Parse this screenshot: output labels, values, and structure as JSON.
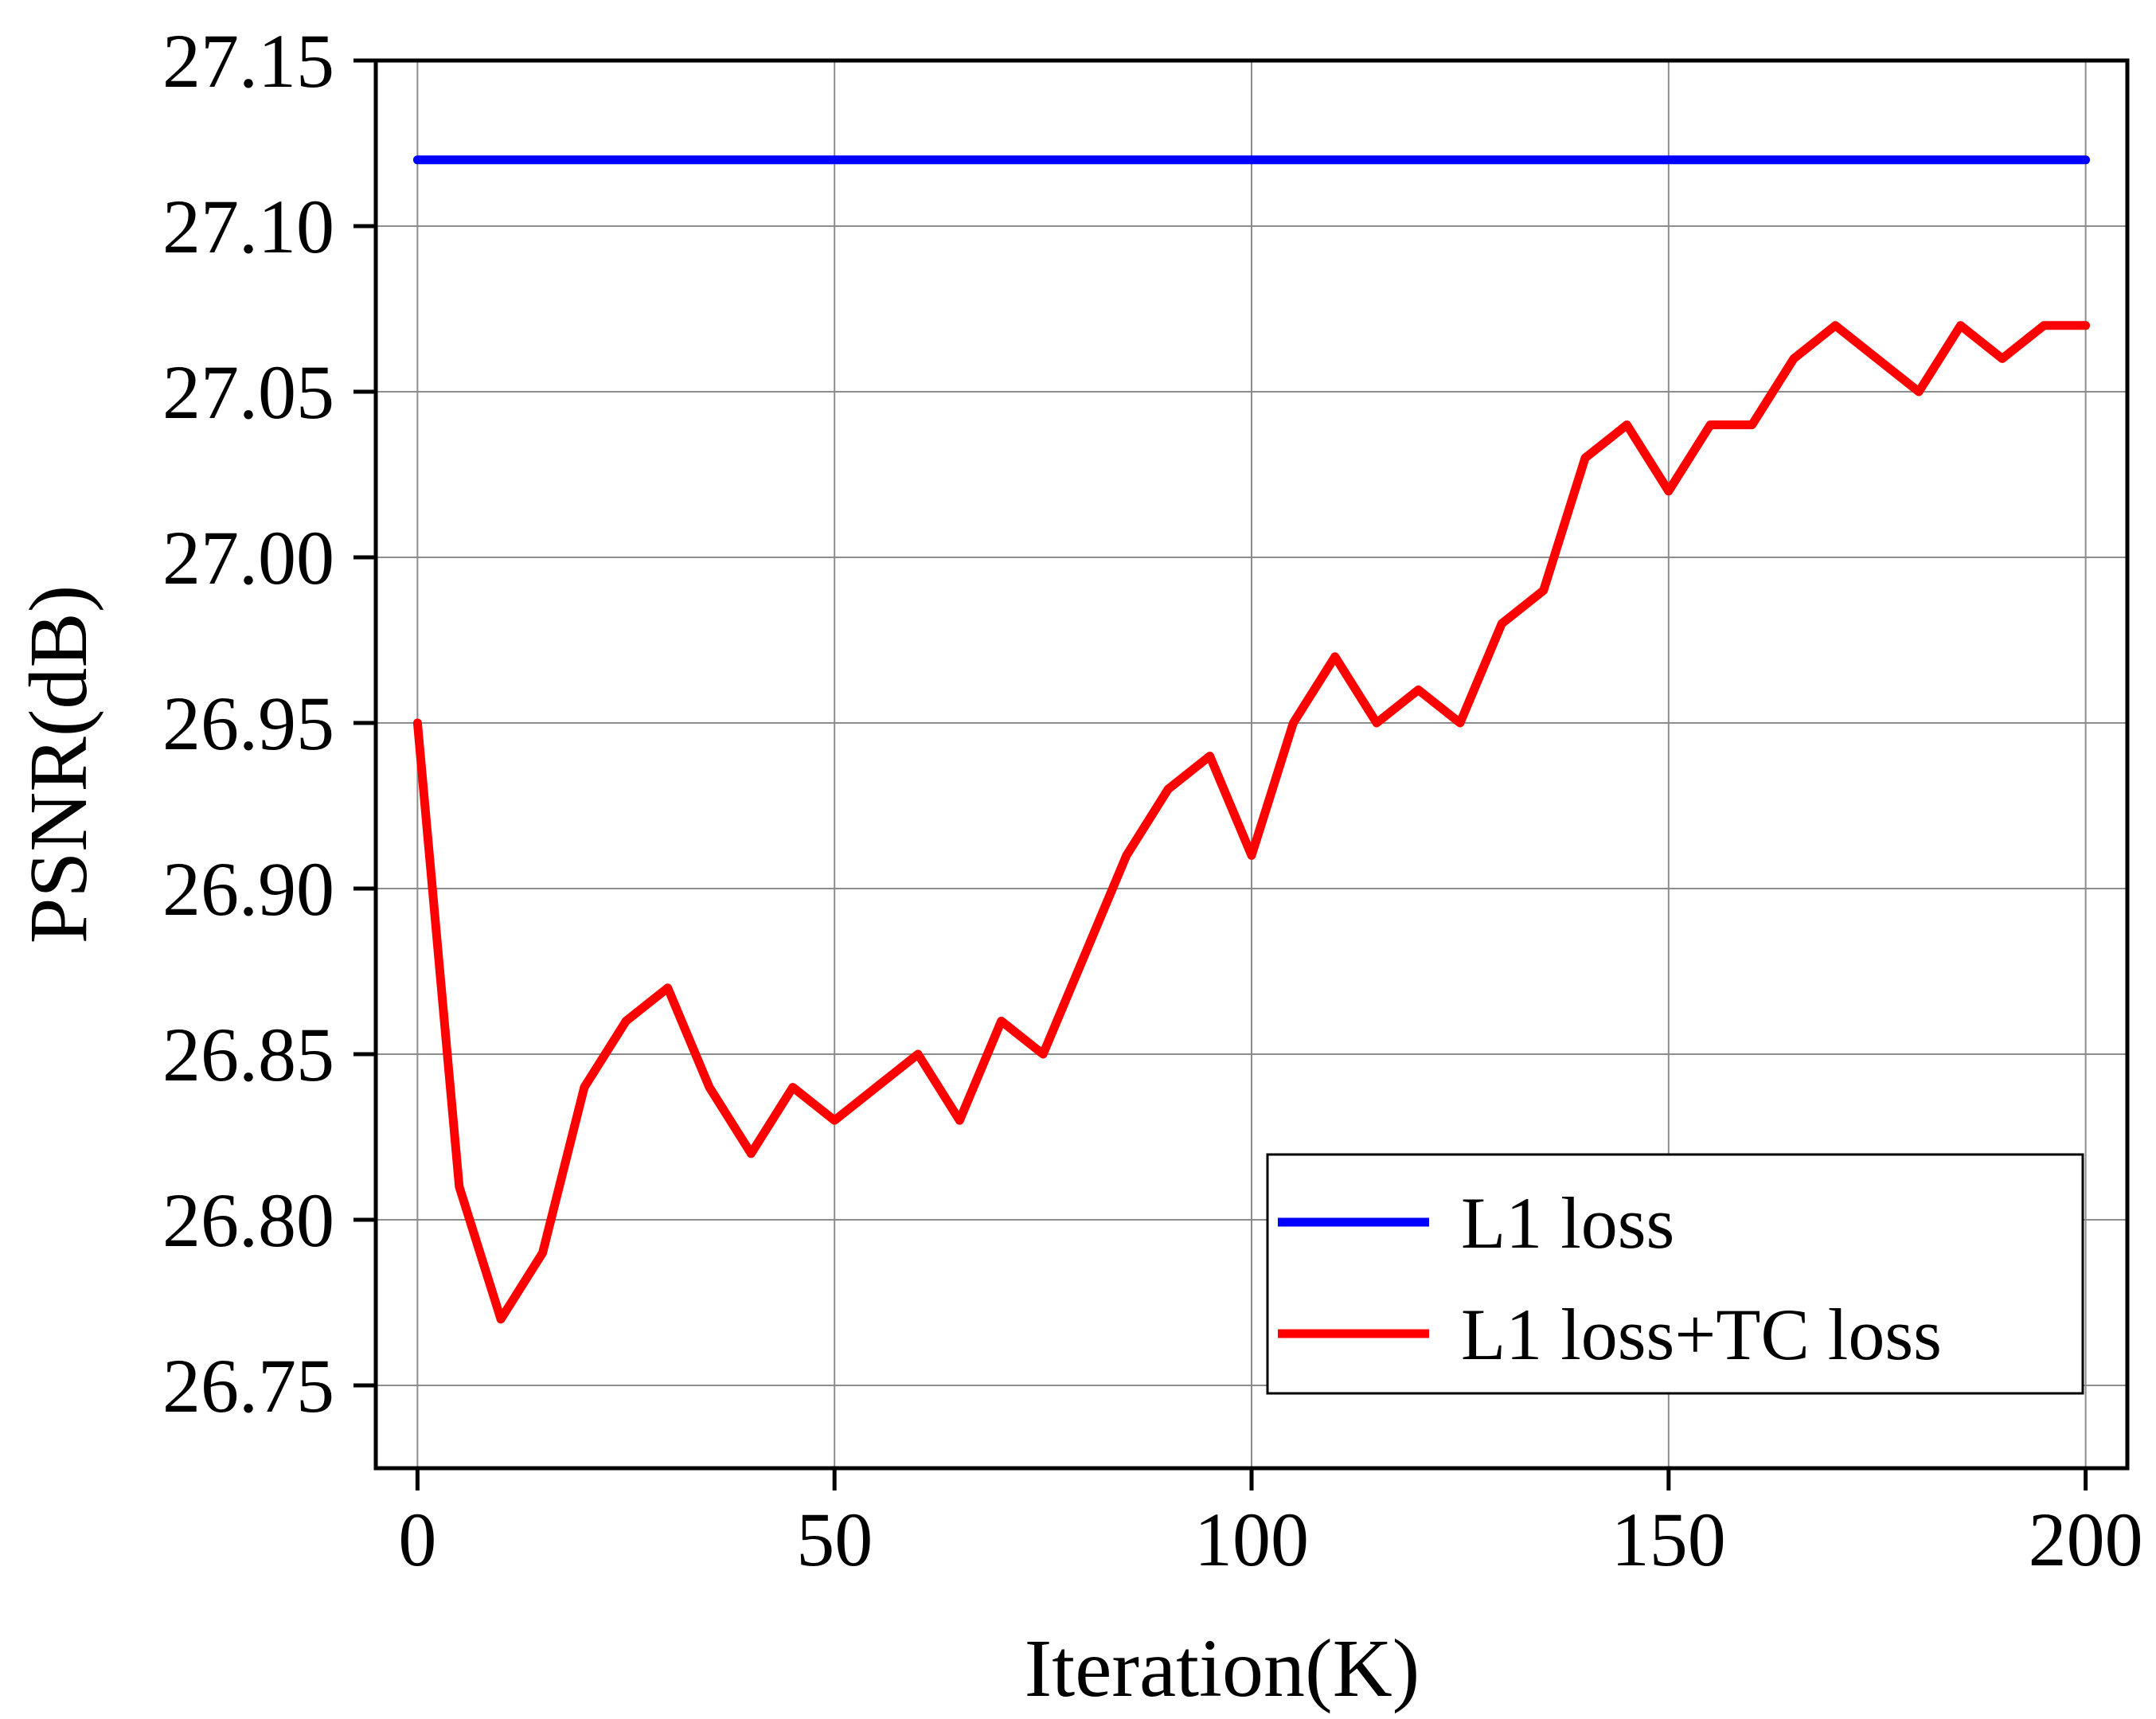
{
  "chart_data": {
    "type": "line",
    "xlabel": "Iteration(K)",
    "ylabel": "PSNR(dB)",
    "xlim": [
      -5,
      205
    ],
    "ylim": [
      26.725,
      27.15
    ],
    "x_ticks": [
      0,
      50,
      100,
      150,
      200
    ],
    "y_ticks": [
      26.75,
      26.8,
      26.85,
      26.9,
      26.95,
      27.0,
      27.05,
      27.1,
      27.15
    ],
    "x_tick_labels": [
      "0",
      "50",
      "100",
      "150",
      "200"
    ],
    "y_tick_labels": [
      "26.75",
      "26.80",
      "26.85",
      "26.90",
      "26.95",
      "27.00",
      "27.05",
      "27.10",
      "27.15"
    ],
    "grid": true,
    "legend_position": "bottom-right",
    "series": [
      {
        "name": "L1 loss",
        "color": "#0000ff",
        "x": [
          0,
          200
        ],
        "y": [
          27.12,
          27.12
        ]
      },
      {
        "name": "L1 loss+TC loss",
        "color": "#ff0000",
        "x": [
          0,
          5,
          10,
          15,
          20,
          25,
          30,
          35,
          40,
          45,
          50,
          55,
          60,
          65,
          70,
          75,
          80,
          85,
          90,
          95,
          100,
          105,
          110,
          115,
          120,
          125,
          130,
          135,
          140,
          145,
          150,
          155,
          160,
          165,
          170,
          175,
          180,
          185,
          190,
          195,
          200
        ],
        "y": [
          26.95,
          26.81,
          26.77,
          26.79,
          26.84,
          26.86,
          26.87,
          26.84,
          26.82,
          26.84,
          26.83,
          26.84,
          26.85,
          26.83,
          26.86,
          26.85,
          26.88,
          26.91,
          26.93,
          26.94,
          26.91,
          26.95,
          26.97,
          26.95,
          26.96,
          26.95,
          26.98,
          26.99,
          27.03,
          27.04,
          27.02,
          27.04,
          27.04,
          27.06,
          27.07,
          27.06,
          27.05,
          27.07,
          27.06,
          27.07,
          27.07
        ]
      }
    ]
  }
}
